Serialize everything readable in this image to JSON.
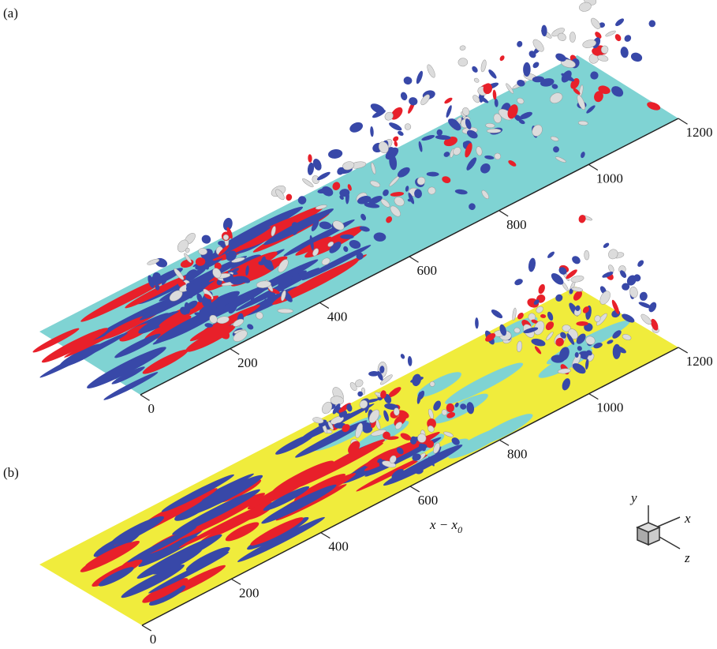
{
  "panels": [
    {
      "label": "(a)",
      "ticks": [
        "0",
        "200",
        "400",
        "600",
        "800",
        "1000",
        "1200"
      ]
    },
    {
      "label": "(b)",
      "ticks": [
        "0",
        "200",
        "400",
        "600",
        "800",
        "1000",
        "1200"
      ]
    }
  ],
  "axis_label": {
    "base": "x − x",
    "sub": "0"
  },
  "triad": {
    "x": "x",
    "y": "y",
    "z": "z"
  }
}
